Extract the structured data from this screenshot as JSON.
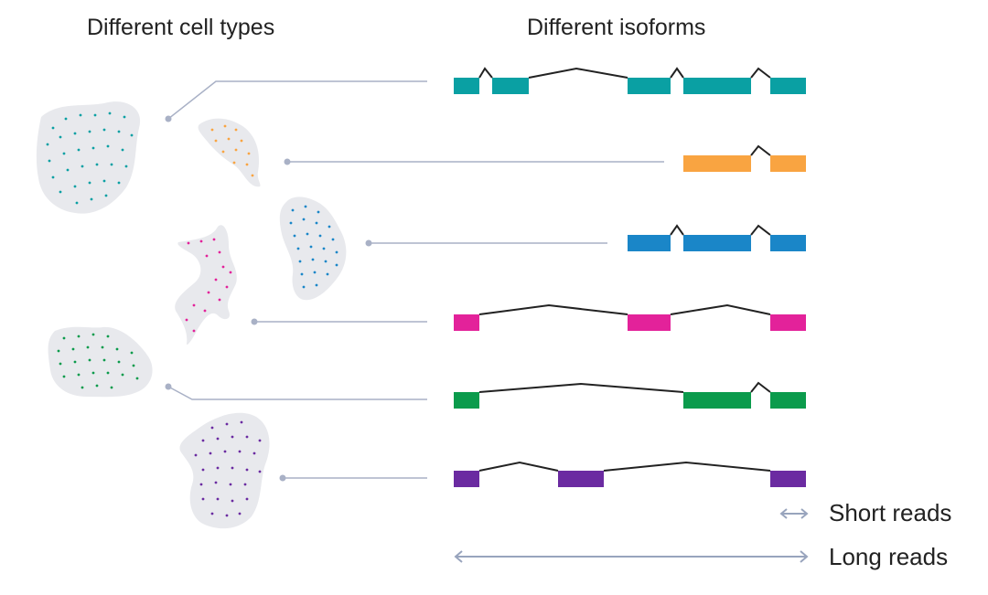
{
  "headings": {
    "cell_types": "Different cell types",
    "isoforms": "Different isoforms"
  },
  "legend": {
    "short_reads": "Short reads",
    "long_reads": "Long reads"
  },
  "colors": {
    "teal": "#0aa0a3",
    "orange": "#f9a441",
    "blue": "#1a86c8",
    "magenta": "#e3229a",
    "green": "#0b9b4c",
    "purple": "#6b2ba1",
    "cell_fill": "#e8e9ed",
    "connector": "#a9b1c6",
    "intron": "#222222",
    "arrow": "#98a4bd"
  },
  "rows": [
    {
      "name": "teal",
      "cell": "teal-cell",
      "exons": 5
    },
    {
      "name": "orange",
      "cell": "orange-cell",
      "exons": 2
    },
    {
      "name": "blue",
      "cell": "blue-cell",
      "exons": 3
    },
    {
      "name": "magenta",
      "cell": "magenta-cell",
      "exons": 3
    },
    {
      "name": "green",
      "cell": "green-cell",
      "exons": 3
    },
    {
      "name": "purple",
      "cell": "purple-cell",
      "exons": 3
    }
  ]
}
